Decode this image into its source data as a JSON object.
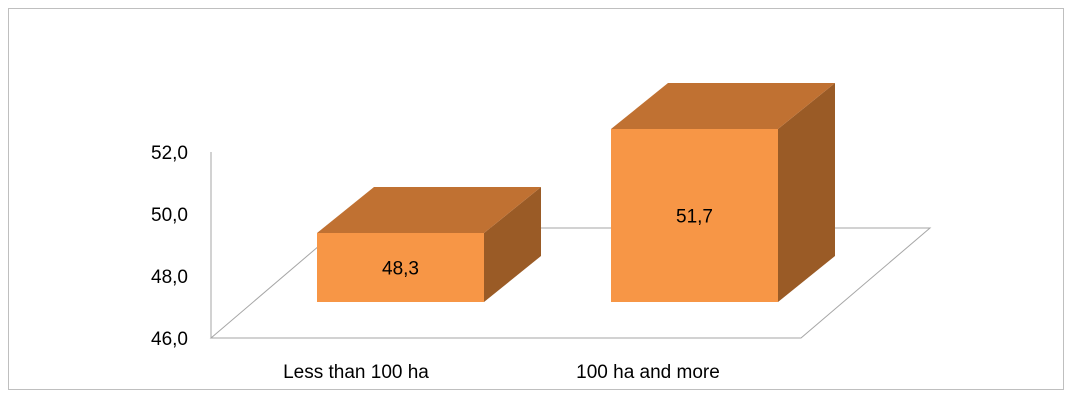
{
  "chart_data": {
    "type": "bar",
    "style": "3d-column",
    "categories": [
      "Less than 100 ha",
      "100 ha and more"
    ],
    "values": [
      48.3,
      51.7
    ],
    "value_labels": [
      "48,3",
      "51,7"
    ],
    "ylim": [
      46.0,
      52.0
    ],
    "yticks": [
      46.0,
      48.0,
      50.0,
      52.0
    ],
    "ytick_labels": [
      "46,0",
      "48,0",
      "50,0",
      "52,0"
    ],
    "title": "",
    "xlabel": "",
    "ylabel": "",
    "grid": false,
    "legend": "none",
    "colors": {
      "front": "#f79646",
      "top": "#c07132",
      "side": "#9a5b26",
      "axis": "#a6a6a6"
    }
  }
}
